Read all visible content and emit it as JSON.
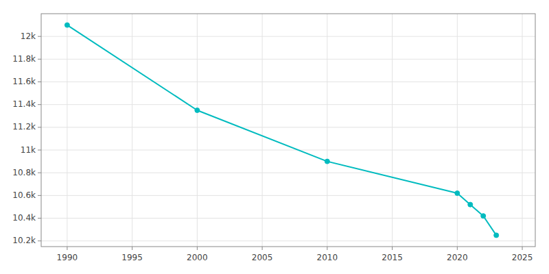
{
  "chart_data": {
    "type": "line",
    "x": [
      1990,
      2000,
      2010,
      2020,
      2021,
      2022,
      2023
    ],
    "values": [
      12100,
      11350,
      10900,
      10620,
      10520,
      10420,
      10250
    ],
    "color": "#00BBBF",
    "marker": "circle",
    "xlim": [
      1988,
      2026
    ],
    "ylim": [
      10150,
      12200
    ],
    "xticks": [
      1990,
      1995,
      2000,
      2005,
      2010,
      2015,
      2020,
      2025
    ],
    "yticks": [
      {
        "value": 10200,
        "label": "10.2k"
      },
      {
        "value": 10400,
        "label": "10.4k"
      },
      {
        "value": 10600,
        "label": "10.6k"
      },
      {
        "value": 10800,
        "label": "10.8k"
      },
      {
        "value": 11000,
        "label": "11k"
      },
      {
        "value": 11200,
        "label": "11.2k"
      },
      {
        "value": 11400,
        "label": "11.4k"
      },
      {
        "value": 11600,
        "label": "11.6k"
      },
      {
        "value": 11800,
        "label": "11.8k"
      },
      {
        "value": 12000,
        "label": "12k"
      }
    ],
    "grid": true
  }
}
